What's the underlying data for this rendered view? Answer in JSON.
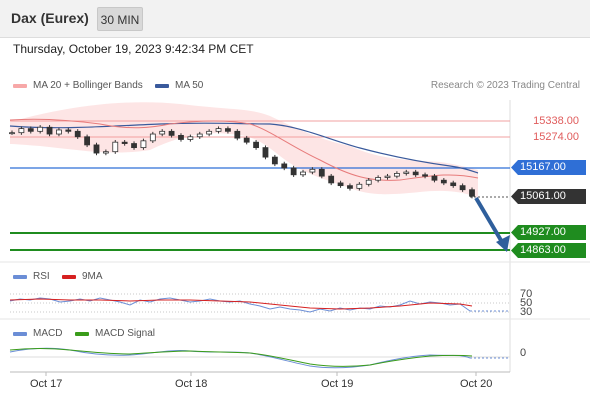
{
  "header": {
    "title": "Dax (Eurex)",
    "timeframe": "30 MIN"
  },
  "timestamp": "Thursday, October 19, 2023 9:42:34 PM CET",
  "legend": {
    "ma20_bb": "MA 20 + Bollinger Bands",
    "ma50": "MA 50",
    "copyright": "Research © 2023 Trading Central"
  },
  "levels": {
    "r2": "15338.00",
    "r1": "15274.00",
    "pivot": "15167.00",
    "last": "15061.00",
    "s1": "14927.00",
    "s2": "14863.00"
  },
  "rsi_panel": {
    "rsi_label": "RSI",
    "ma_label": "9MA",
    "axis": [
      "70",
      "50",
      "30"
    ]
  },
  "macd_panel": {
    "macd_label": "MACD",
    "signal_label": "MACD Signal",
    "axis": [
      "0"
    ]
  },
  "x_axis": [
    "Oct 17",
    "Oct 18",
    "Oct 19",
    "Oct 20"
  ],
  "colors": {
    "bollinger": "#f7a8a8",
    "ma50": "#3a5a9c",
    "rsi": "#6b8ed6",
    "rsi_ma": "#d62020",
    "macd": "#6b8ed6",
    "macd_signal": "#3a9c1a",
    "support": "#1f8c1f",
    "pivot": "#2f6fd6",
    "resistance": "#e86f6f",
    "last": "#333333"
  },
  "chart_data": {
    "type": "candlestick",
    "instrument": "Dax (Eurex)",
    "interval": "30 MIN",
    "x_ticks": [
      "Oct 17",
      "Oct 18",
      "Oct 19",
      "Oct 20"
    ],
    "close_path": [
      15295,
      15310,
      15300,
      15315,
      15290,
      15305,
      15300,
      15280,
      15250,
      15220,
      15225,
      15260,
      15255,
      15240,
      15265,
      15290,
      15300,
      15285,
      15270,
      15280,
      15290,
      15300,
      15310,
      15300,
      15275,
      15260,
      15240,
      15205,
      15180,
      15165,
      15140,
      15150,
      15160,
      15135,
      15110,
      15100,
      15090,
      15105,
      15120,
      15130,
      15135,
      15145,
      15150,
      15140,
      15135,
      15120,
      15110,
      15100,
      15085,
      15061
    ],
    "levels": [
      15338,
      15274,
      15167,
      15061,
      14927,
      14863
    ],
    "forecast_direction": "down",
    "forecast_target": 14863
  }
}
